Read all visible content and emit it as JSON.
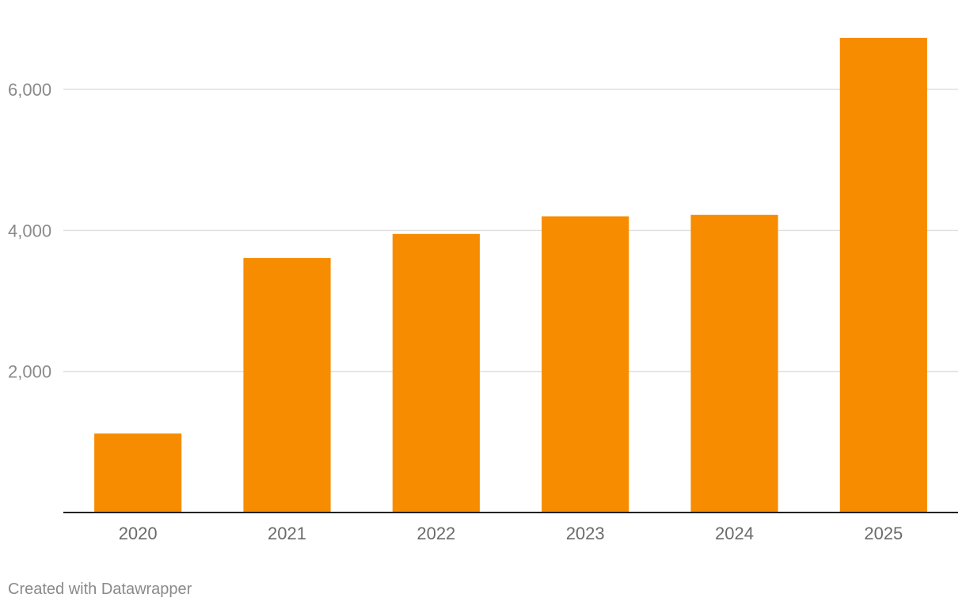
{
  "chart_data": {
    "type": "bar",
    "categories": [
      "2020",
      "2021",
      "2022",
      "2023",
      "2024",
      "2025"
    ],
    "values": [
      1120,
      3610,
      3950,
      4200,
      4220,
      6730
    ],
    "title": "",
    "xlabel": "",
    "ylabel": "",
    "ylim": [
      0,
      7200
    ],
    "yticks": [
      2000,
      4000,
      6000
    ],
    "ytick_labels": [
      "2,000",
      "4,000",
      "6,000"
    ],
    "grid": true,
    "colors": {
      "bar": "#f78c00",
      "gridline": "#e0e0e0",
      "baseline": "#222222",
      "tick_text": "#8a8a8a",
      "category_text": "#6b6b6b"
    }
  },
  "footer": {
    "credit": "Created with Datawrapper"
  }
}
